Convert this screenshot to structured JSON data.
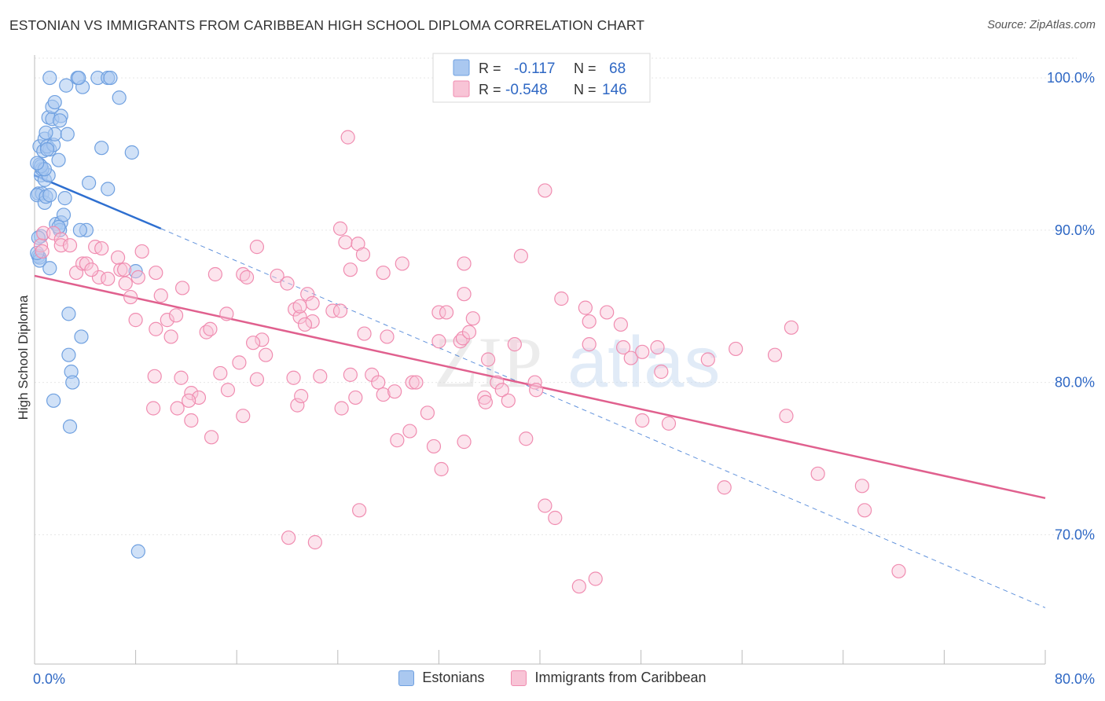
{
  "title": "ESTONIAN VS IMMIGRANTS FROM CARIBBEAN HIGH SCHOOL DIPLOMA CORRELATION CHART",
  "source": "Source: ZipAtlas.com",
  "watermark": {
    "zip": "ZIP",
    "atlas": "atlas"
  },
  "colors": {
    "blue": "#6fa0e0",
    "blue_fill": "#aac8f0",
    "blue_line": "#2e6fd0",
    "pink": "#f08cb0",
    "pink_fill": "#f8c4d6",
    "pink_line": "#e0608e",
    "value_text": "#2f68c4",
    "grid": "#e6e6e6"
  },
  "legend": {
    "rows": [
      {
        "r_label": "R =",
        "r_value": "-0.117",
        "n_label": "N =",
        "n_value": "68"
      },
      {
        "r_label": "R =",
        "r_value": "-0.548",
        "n_label": "N =",
        "n_value": "146"
      }
    ]
  },
  "bottom_legend": [
    "Estonians",
    "Immigrants from Caribbean"
  ],
  "chart_data": {
    "type": "scatter",
    "title": "ESTONIAN VS IMMIGRANTS FROM CARIBBEAN HIGH SCHOOL DIPLOMA CORRELATION CHART",
    "xlabel": "",
    "ylabel": "High School Diploma",
    "xlim": [
      0,
      80
    ],
    "ylim": [
      61.5,
      101.5
    ],
    "x_tick_labels": [
      "0.0%",
      "80.0%"
    ],
    "y_ticks": [
      70,
      80,
      90,
      100
    ],
    "y_tick_labels": [
      "70.0%",
      "80.0%",
      "90.0%",
      "100.0%"
    ],
    "grid": true,
    "series": [
      {
        "name": "Estonians",
        "r": -0.117,
        "n": 68,
        "trend": {
          "x": [
            0,
            10
          ],
          "y": [
            93.6,
            90.1
          ],
          "dashed_to": {
            "x": 80,
            "y": 65.2
          }
        },
        "points": [
          [
            0.4,
            94.3
          ],
          [
            0.5,
            93.6
          ],
          [
            0.3,
            92.4
          ],
          [
            0.6,
            92.4
          ],
          [
            0.2,
            92.3
          ],
          [
            0.8,
            93.3
          ],
          [
            1.1,
            93.6
          ],
          [
            0.6,
            94.0
          ],
          [
            0.5,
            94.2
          ],
          [
            0.4,
            95.5
          ],
          [
            0.7,
            95.2
          ],
          [
            0.8,
            96.0
          ],
          [
            1.2,
            95.3
          ],
          [
            1.0,
            95.5
          ],
          [
            1.5,
            95.6
          ],
          [
            1.6,
            96.3
          ],
          [
            2.6,
            96.3
          ],
          [
            1.9,
            94.6
          ],
          [
            1.1,
            97.4
          ],
          [
            1.4,
            97.3
          ],
          [
            2.1,
            97.5
          ],
          [
            1.4,
            98.1
          ],
          [
            1.6,
            98.4
          ],
          [
            2.5,
            99.5
          ],
          [
            3.8,
            99.4
          ],
          [
            1.2,
            100.0
          ],
          [
            3.4,
            100.0
          ],
          [
            3.5,
            100.0
          ],
          [
            5.0,
            100.0
          ],
          [
            5.8,
            100.0
          ],
          [
            6.0,
            100.0
          ],
          [
            6.7,
            98.7
          ],
          [
            5.3,
            95.4
          ],
          [
            7.7,
            95.1
          ],
          [
            4.3,
            93.1
          ],
          [
            5.8,
            92.7
          ],
          [
            2.4,
            92.1
          ],
          [
            0.8,
            91.8
          ],
          [
            0.9,
            92.2
          ],
          [
            1.2,
            92.3
          ],
          [
            1.7,
            90.4
          ],
          [
            2.1,
            90.5
          ],
          [
            2.0,
            90.0
          ],
          [
            4.1,
            90.0
          ],
          [
            0.3,
            88.3
          ],
          [
            0.4,
            88.2
          ],
          [
            0.4,
            88.0
          ],
          [
            1.2,
            87.5
          ],
          [
            0.5,
            89.6
          ],
          [
            0.3,
            89.5
          ],
          [
            8.0,
            87.3
          ],
          [
            2.7,
            84.5
          ],
          [
            3.7,
            83.0
          ],
          [
            2.7,
            81.8
          ],
          [
            2.9,
            80.7
          ],
          [
            3.0,
            80.0
          ],
          [
            1.5,
            78.8
          ],
          [
            2.8,
            77.1
          ],
          [
            8.2,
            68.9
          ],
          [
            0.8,
            94.0
          ],
          [
            0.2,
            94.4
          ],
          [
            1.0,
            95.3
          ],
          [
            2.0,
            97.2
          ],
          [
            0.9,
            96.4
          ],
          [
            2.3,
            91.0
          ],
          [
            0.2,
            88.5
          ],
          [
            1.9,
            90.2
          ],
          [
            3.6,
            90.0
          ]
        ]
      },
      {
        "name": "Immigrants from Caribbean",
        "r": -0.548,
        "n": 146,
        "trend": {
          "x": [
            0,
            80
          ],
          "y": [
            87.0,
            72.4
          ]
        },
        "points": [
          [
            0.5,
            89.0
          ],
          [
            0.7,
            89.8
          ],
          [
            0.6,
            88.6
          ],
          [
            1.5,
            89.8
          ],
          [
            2.1,
            89.4
          ],
          [
            2.1,
            89.0
          ],
          [
            2.8,
            89.0
          ],
          [
            3.3,
            87.2
          ],
          [
            3.8,
            87.8
          ],
          [
            4.1,
            87.8
          ],
          [
            5.1,
            86.9
          ],
          [
            5.8,
            86.8
          ],
          [
            4.5,
            87.4
          ],
          [
            4.8,
            88.9
          ],
          [
            5.3,
            88.8
          ],
          [
            6.8,
            87.4
          ],
          [
            7.1,
            87.4
          ],
          [
            6.6,
            88.2
          ],
          [
            7.2,
            86.5
          ],
          [
            7.6,
            85.6
          ],
          [
            8.2,
            86.9
          ],
          [
            8.5,
            88.6
          ],
          [
            9.6,
            87.2
          ],
          [
            10.0,
            85.7
          ],
          [
            10.5,
            84.1
          ],
          [
            11.2,
            84.4
          ],
          [
            11.7,
            86.2
          ],
          [
            9.6,
            83.5
          ],
          [
            8.0,
            84.1
          ],
          [
            10.8,
            83.0
          ],
          [
            9.5,
            80.4
          ],
          [
            11.6,
            80.3
          ],
          [
            12.4,
            79.3
          ],
          [
            13.0,
            79.0
          ],
          [
            13.6,
            83.3
          ],
          [
            13.9,
            83.5
          ],
          [
            15.2,
            84.5
          ],
          [
            14.7,
            80.6
          ],
          [
            15.3,
            79.5
          ],
          [
            16.2,
            81.3
          ],
          [
            12.2,
            78.8
          ],
          [
            11.3,
            78.3
          ],
          [
            12.4,
            77.5
          ],
          [
            14.0,
            76.4
          ],
          [
            16.5,
            77.8
          ],
          [
            16.5,
            87.1
          ],
          [
            14.3,
            87.1
          ],
          [
            18.0,
            82.8
          ],
          [
            17.3,
            82.6
          ],
          [
            18.3,
            81.8
          ],
          [
            17.6,
            80.2
          ],
          [
            16.8,
            86.9
          ],
          [
            17.6,
            88.9
          ],
          [
            19.2,
            87.0
          ],
          [
            20.0,
            86.5
          ],
          [
            20.6,
            84.8
          ],
          [
            21.0,
            84.3
          ],
          [
            20.5,
            80.3
          ],
          [
            20.8,
            78.5
          ],
          [
            21.1,
            79.1
          ],
          [
            21.6,
            85.8
          ],
          [
            22.0,
            85.2
          ],
          [
            21.0,
            85.0
          ],
          [
            22.0,
            84.0
          ],
          [
            21.4,
            83.8
          ],
          [
            22.6,
            80.4
          ],
          [
            23.6,
            84.7
          ],
          [
            24.2,
            84.7
          ],
          [
            24.2,
            90.1
          ],
          [
            24.6,
            89.2
          ],
          [
            24.3,
            78.3
          ],
          [
            25.0,
            87.4
          ],
          [
            25.4,
            79.0
          ],
          [
            25.6,
            89.1
          ],
          [
            25.0,
            80.5
          ],
          [
            26.0,
            88.4
          ],
          [
            26.1,
            83.2
          ],
          [
            26.7,
            80.5
          ],
          [
            27.2,
            80.0
          ],
          [
            27.6,
            79.2
          ],
          [
            27.6,
            87.2
          ],
          [
            27.9,
            83.0
          ],
          [
            28.5,
            79.4
          ],
          [
            29.1,
            87.8
          ],
          [
            28.7,
            76.2
          ],
          [
            29.7,
            76.8
          ],
          [
            29.9,
            80.0
          ],
          [
            30.2,
            80.0
          ],
          [
            31.1,
            78.0
          ],
          [
            31.6,
            75.8
          ],
          [
            32.0,
            82.7
          ],
          [
            32.0,
            84.6
          ],
          [
            32.2,
            74.3
          ],
          [
            32.6,
            84.6
          ],
          [
            33.7,
            82.7
          ],
          [
            33.9,
            82.9
          ],
          [
            34.0,
            87.8
          ],
          [
            34.0,
            85.8
          ],
          [
            34.7,
            84.2
          ],
          [
            34.4,
            83.3
          ],
          [
            34.0,
            76.1
          ],
          [
            35.6,
            79.0
          ],
          [
            35.7,
            78.7
          ],
          [
            35.9,
            81.5
          ],
          [
            36.6,
            80.0
          ],
          [
            37.0,
            79.5
          ],
          [
            37.5,
            78.8
          ],
          [
            38.0,
            82.5
          ],
          [
            38.5,
            88.3
          ],
          [
            38.9,
            76.3
          ],
          [
            39.6,
            80.0
          ],
          [
            39.7,
            79.5
          ],
          [
            40.4,
            71.9
          ],
          [
            41.2,
            71.1
          ],
          [
            41.7,
            85.5
          ],
          [
            43.9,
            84.0
          ],
          [
            43.9,
            82.5
          ],
          [
            43.6,
            84.9
          ],
          [
            45.3,
            84.6
          ],
          [
            46.4,
            83.8
          ],
          [
            46.6,
            82.3
          ],
          [
            47.2,
            81.6
          ],
          [
            48.1,
            82.0
          ],
          [
            48.1,
            77.5
          ],
          [
            49.3,
            82.3
          ],
          [
            50.2,
            77.3
          ],
          [
            49.6,
            80.7
          ],
          [
            53.3,
            81.5
          ],
          [
            55.5,
            82.2
          ],
          [
            58.6,
            81.8
          ],
          [
            59.9,
            83.6
          ],
          [
            59.5,
            77.8
          ],
          [
            54.6,
            73.1
          ],
          [
            62.0,
            74.0
          ],
          [
            65.5,
            73.2
          ],
          [
            65.7,
            71.6
          ],
          [
            68.4,
            67.6
          ],
          [
            44.4,
            67.1
          ],
          [
            43.1,
            66.6
          ],
          [
            22.2,
            69.5
          ],
          [
            25.7,
            71.6
          ],
          [
            24.8,
            96.1
          ],
          [
            40.4,
            92.6
          ],
          [
            9.4,
            78.3
          ],
          [
            20.1,
            69.8
          ]
        ]
      }
    ]
  }
}
